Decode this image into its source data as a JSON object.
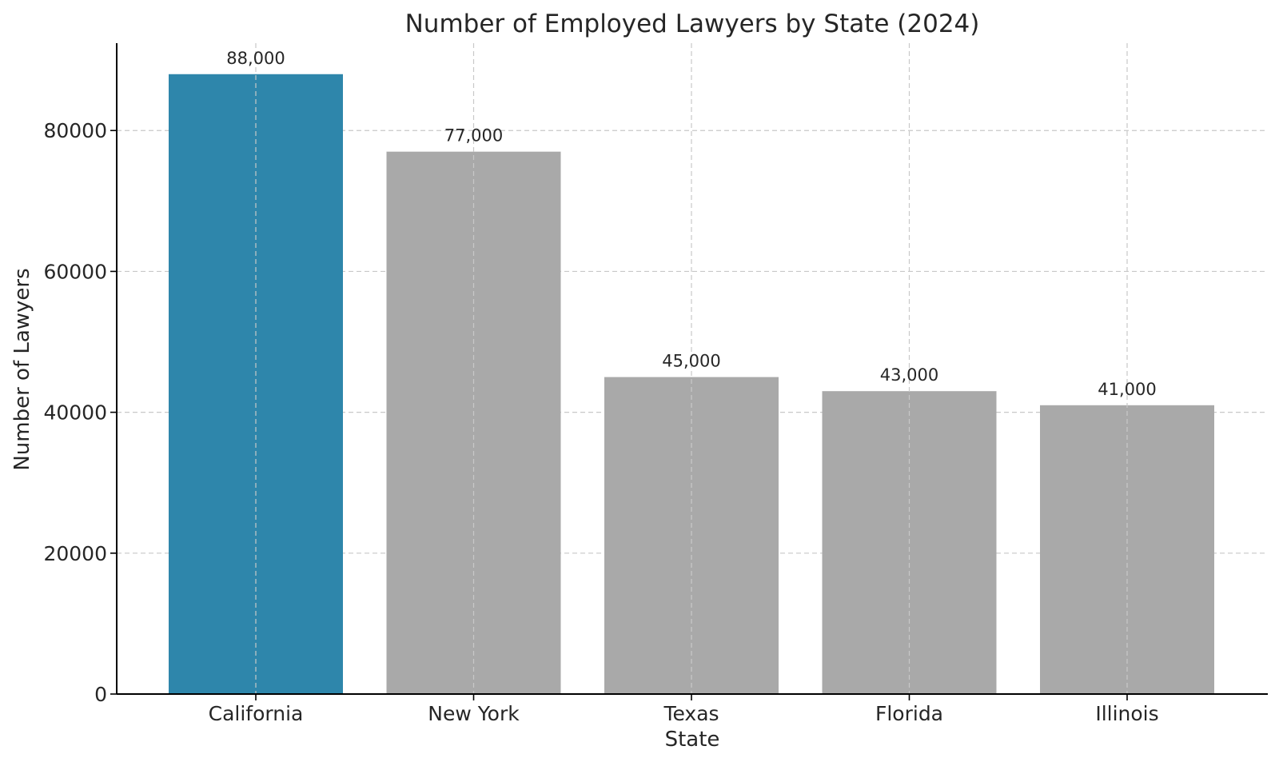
{
  "chart_data": {
    "type": "bar",
    "title": "Number of Employed Lawyers by State (2024)",
    "xlabel": "State",
    "ylabel": "Number of Lawyers",
    "categories": [
      "California",
      "New York",
      "Texas",
      "Florida",
      "Illinois"
    ],
    "values": [
      88000,
      77000,
      45000,
      43000,
      41000
    ],
    "data_labels": [
      "88,000",
      "77,000",
      "45,000",
      "43,000",
      "41,000"
    ],
    "ylim": [
      0,
      92400
    ],
    "yticks": [
      0,
      20000,
      40000,
      60000,
      80000
    ],
    "ytick_labels": [
      "0",
      "20000",
      "40000",
      "60000",
      "80000"
    ],
    "grid": true,
    "colors": {
      "highlight": "#2e86ab",
      "default": "#a9a9a9"
    },
    "highlight_index": 0
  }
}
